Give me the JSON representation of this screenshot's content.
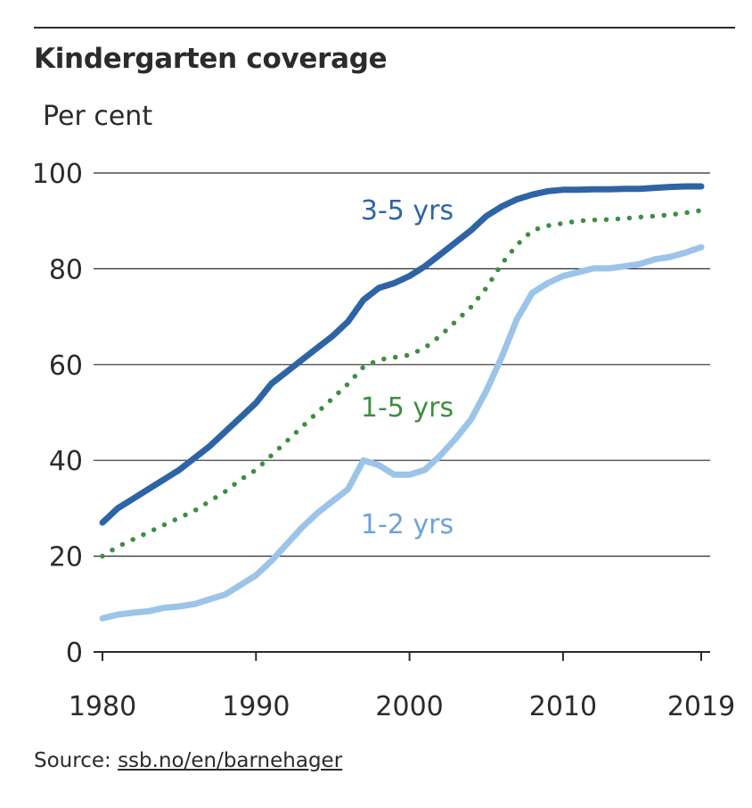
{
  "header": {
    "title": "Kindergarten coverage"
  },
  "footer": {
    "source_prefix": "Source: ",
    "source_link": "ssb.no/en/barnehager"
  },
  "chart_data": {
    "type": "line",
    "title": "Kindergarten coverage",
    "ylabel": "Per cent",
    "xlabel": "",
    "xlim": [
      1980,
      2019
    ],
    "ylim": [
      0,
      100
    ],
    "x_ticks": [
      1980,
      1990,
      2000,
      2010,
      2019
    ],
    "y_ticks": [
      0,
      20,
      40,
      60,
      80,
      100
    ],
    "grid": "horizontal",
    "x": [
      1980,
      1981,
      1982,
      1983,
      1984,
      1985,
      1986,
      1987,
      1988,
      1989,
      1990,
      1991,
      1992,
      1993,
      1994,
      1995,
      1996,
      1997,
      1998,
      1999,
      2000,
      2001,
      2002,
      2003,
      2004,
      2005,
      2006,
      2007,
      2008,
      2009,
      2010,
      2011,
      2012,
      2013,
      2014,
      2015,
      2016,
      2017,
      2018,
      2019
    ],
    "series": [
      {
        "name": "3-5 yrs",
        "color": "#2e64a6",
        "style": "solid",
        "values": [
          27,
          30,
          32,
          34,
          36,
          38,
          40.5,
          43,
          46,
          49,
          52,
          56,
          58.5,
          61,
          63.5,
          66,
          69,
          73.5,
          76,
          77,
          78.5,
          80.5,
          83,
          85.5,
          88,
          91,
          93,
          94.5,
          95.5,
          96.2,
          96.5,
          96.5,
          96.6,
          96.6,
          96.7,
          96.7,
          96.9,
          97.1,
          97.2,
          97.2
        ]
      },
      {
        "name": "1-5 yrs",
        "color": "#3e8e41",
        "style": "dotted",
        "values": [
          20,
          22,
          23.5,
          25,
          26.5,
          28,
          29.5,
          31.5,
          33.5,
          36,
          38,
          41,
          44,
          47,
          50,
          53,
          56,
          59.5,
          61,
          61.5,
          62,
          63.5,
          66,
          69,
          72,
          76,
          81,
          85,
          88,
          89,
          89.5,
          90,
          90.2,
          90.3,
          90.5,
          90.8,
          91,
          91.3,
          91.7,
          92.2
        ]
      },
      {
        "name": "1-2 yrs",
        "color": "#9cc4e8",
        "style": "solid",
        "values": [
          7,
          7.8,
          8.2,
          8.5,
          9.2,
          9.5,
          10,
          11,
          12,
          14,
          16,
          19,
          22.5,
          26,
          29,
          31.5,
          34,
          40,
          39,
          37,
          37,
          38,
          41,
          44.5,
          48.5,
          54.5,
          61.5,
          69.5,
          75,
          77,
          78.5,
          79.3,
          80.1,
          80.1,
          80.5,
          81,
          82,
          82.5,
          83.4,
          84.5
        ]
      }
    ],
    "annotations": [
      "3-5 yrs",
      "1-5 yrs",
      "1-2 yrs"
    ]
  }
}
